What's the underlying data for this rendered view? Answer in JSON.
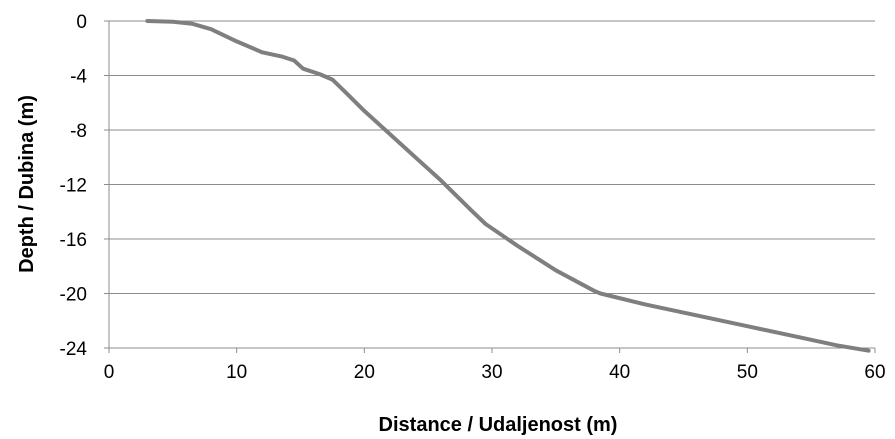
{
  "chart_data": {
    "type": "line",
    "title": "",
    "xlabel": "Distance / Udaljenost (m)",
    "ylabel": "Depth / Dubina (m)",
    "xlim": [
      0,
      60
    ],
    "ylim": [
      -24,
      0
    ],
    "x_ticks": [
      0,
      10,
      20,
      30,
      40,
      50,
      60
    ],
    "y_ticks": [
      0,
      -4,
      -8,
      -12,
      -16,
      -20,
      -24
    ],
    "x_tick_labels": [
      "0",
      "10",
      "20",
      "30",
      "40",
      "50",
      "60"
    ],
    "y_tick_labels": [
      "0",
      "-4",
      "-8",
      "-12",
      "-16",
      "-20",
      "-24"
    ],
    "grid": "horizontal",
    "legend": "none",
    "series": [
      {
        "color": "#7f7f7f",
        "x": [
          3,
          5,
          6.5,
          8,
          10,
          12,
          13.5,
          14.5,
          15.2,
          16.5,
          17.5,
          18.5,
          20,
          22,
          24,
          26,
          28.5,
          29.5,
          32,
          35,
          38,
          38.5,
          42,
          46,
          50,
          54,
          57,
          59.5
        ],
        "y": [
          0,
          -0.05,
          -0.2,
          -0.6,
          -1.5,
          -2.3,
          -2.6,
          -2.9,
          -3.5,
          -3.9,
          -4.3,
          -5.2,
          -6.6,
          -8.3,
          -10.0,
          -11.7,
          -14.0,
          -14.9,
          -16.5,
          -18.3,
          -19.8,
          -20.0,
          -20.8,
          -21.6,
          -22.4,
          -23.2,
          -23.8,
          -24.2
        ]
      }
    ]
  }
}
